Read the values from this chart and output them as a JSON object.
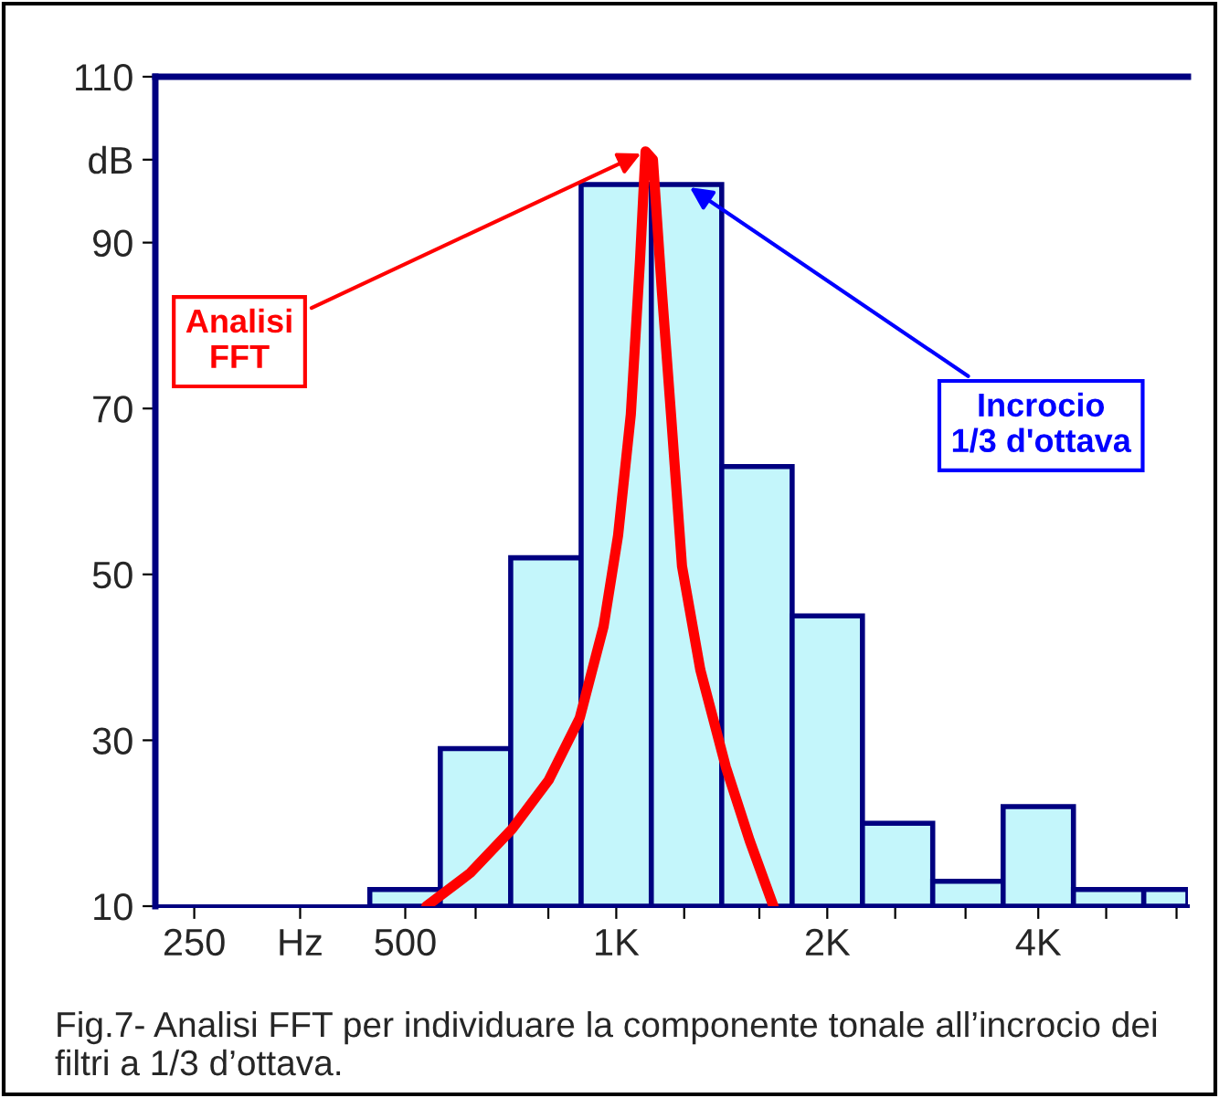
{
  "chart_data": {
    "type": "histogram",
    "bins": [
      445,
      561,
      707,
      891,
      1122,
      1414,
      1782,
      2245,
      2828,
      3564,
      4490,
      5657,
      6540
    ],
    "values": [
      12,
      29,
      52,
      97,
      97,
      63,
      45,
      20,
      13,
      22,
      12,
      12
    ],
    "color": "#c4f6fb",
    "series": [
      {
        "type": "line",
        "color": "#ff0000",
        "x": [
          536,
          619,
          710,
          801,
          887,
          959,
          1006,
          1049,
          1081,
          1101,
          1128,
          1162,
          1197,
          1241,
          1318,
          1433,
          1550,
          1676
        ],
        "values": [
          10,
          14,
          19.3,
          25.2,
          32.7,
          43.7,
          54.7,
          69.3,
          87.8,
          101,
          100,
          84,
          69.3,
          51,
          38.5,
          26.8,
          17.9,
          10
        ]
      }
    ],
    "log": "x",
    "xlim": [
      220,
      6540
    ],
    "xticks": [
      250,
      {
        "value": 354,
        "label": "Hz"
      },
      500,
      {
        "value": 630,
        "label": null
      },
      {
        "value": 800,
        "label": null
      },
      {
        "value": 1000,
        "label": "1K"
      },
      {
        "value": 1250,
        "label": null
      },
      {
        "value": 1600,
        "label": null
      },
      {
        "value": 2000,
        "label": "2K"
      },
      {
        "value": 2500,
        "label": null
      },
      {
        "value": 3150,
        "label": null
      },
      {
        "value": 4000,
        "label": "4K"
      },
      {
        "value": 5000,
        "label": null
      },
      {
        "value": 6300,
        "label": null
      }
    ],
    "ylim": [
      10,
      110
    ],
    "yticks": [
      10,
      30,
      50,
      70,
      90,
      {
        "value": 100,
        "label": "dB"
      },
      110
    ],
    "grid": false,
    "annotations": [
      {
        "text": "Analisi\nFFT",
        "x": 1101,
        "y": 101
      },
      {
        "text": "Incrocio\n1/3 d'ottava",
        "x": 1256,
        "y": 97
      },
      "Fig.7- Analisi FFT per individuare la componente tonale all’incrocio dei filtri a 1/3 d’ottava."
    ]
  }
}
